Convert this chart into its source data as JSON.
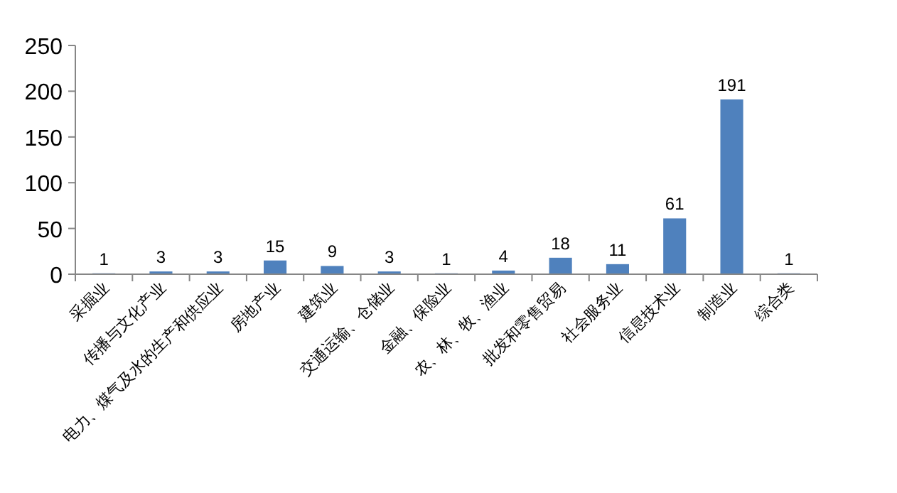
{
  "chart_data": {
    "type": "bar",
    "categories": [
      "采掘业",
      "传播与文化产业",
      "电力、煤气及水的生产和供应业",
      "房地产业",
      "建筑业",
      "交通运输、仓储业",
      "金融、保险业",
      "农、林、牧、渔业",
      "批发和零售贸易",
      "社会服务业",
      "信息技术业",
      "制造业",
      "综合类"
    ],
    "values": [
      1,
      3,
      3,
      15,
      9,
      3,
      1,
      4,
      18,
      11,
      61,
      191,
      1
    ],
    "color": "#4f81bd",
    "ylim": [
      0,
      250
    ],
    "yticks": [
      0,
      50,
      100,
      150,
      200,
      250
    ],
    "data_labels": true,
    "grid": false
  }
}
